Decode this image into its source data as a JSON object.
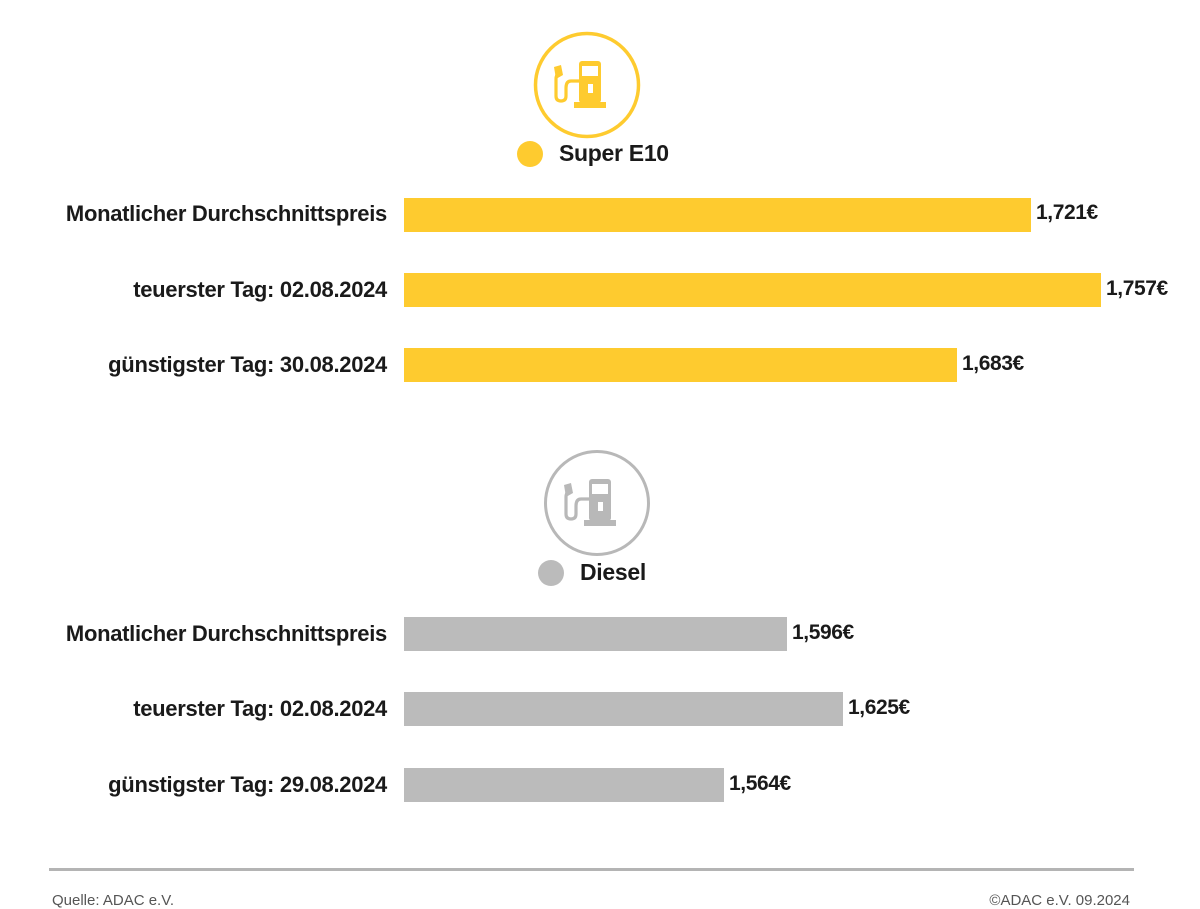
{
  "colors": {
    "super_e10": "#fecb2f",
    "diesel": "#bbbbbb",
    "diesel_icon": "#b8b8b8"
  },
  "chart_data": [
    {
      "type": "bar",
      "orientation": "horizontal",
      "series_name": "Super E10",
      "icon": "fuel-pump-icon",
      "categories": [
        "Monatlicher Durchschnittspreis",
        "teuerster Tag: 02.08.2024",
        "günstigster Tag: 30.08.2024"
      ],
      "values": [
        1.721,
        1.757,
        1.683
      ],
      "value_labels": [
        "1,721€",
        "1,757€",
        "1,683€"
      ],
      "unit": "€",
      "color": "#fecb2f"
    },
    {
      "type": "bar",
      "orientation": "horizontal",
      "series_name": "Diesel",
      "icon": "fuel-pump-icon",
      "categories": [
        "Monatlicher Durchschnittspreis",
        "teuerster Tag: 02.08.2024",
        "günstigster Tag: 29.08.2024"
      ],
      "values": [
        1.596,
        1.625,
        1.564
      ],
      "value_labels": [
        "1,596€",
        "1,625€",
        "1,564€"
      ],
      "unit": "€",
      "color": "#bbbbbb"
    }
  ],
  "footer": {
    "source": "Quelle: ADAC e.V.",
    "copyright": "©ADAC e.V. 09.2024"
  }
}
